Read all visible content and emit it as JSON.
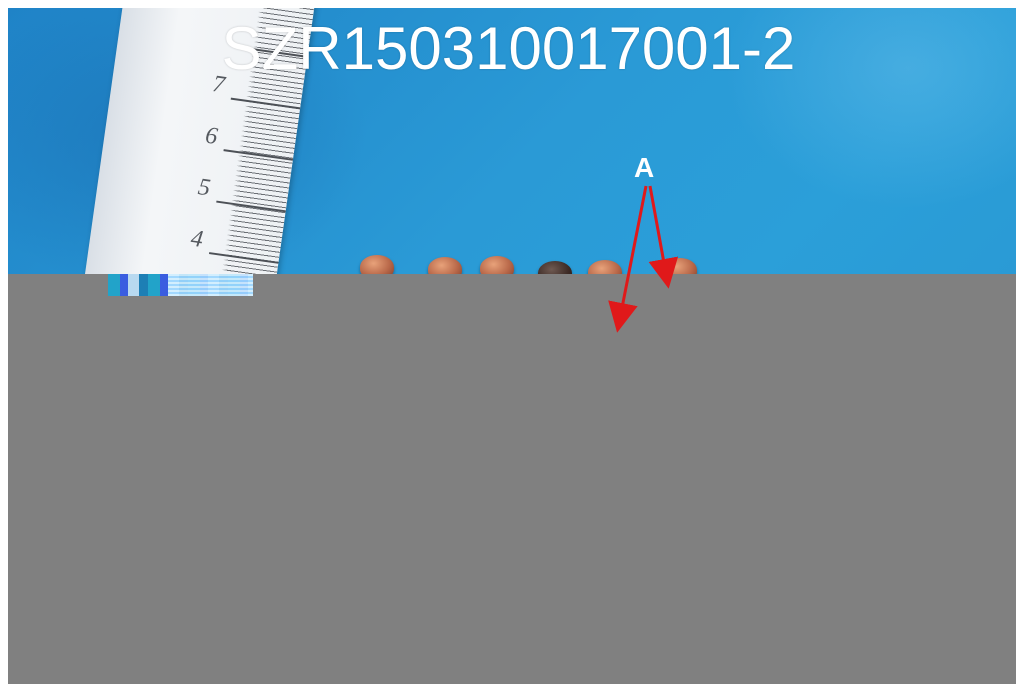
{
  "image": {
    "title_text": "SZR150310017001-2",
    "annotation_label": "A",
    "ruler_numbers": [
      "7",
      "6",
      "5",
      "4"
    ],
    "background_color": "#2a9ad6",
    "redaction_color": "#808080",
    "arrow_color": "#e0191a"
  }
}
